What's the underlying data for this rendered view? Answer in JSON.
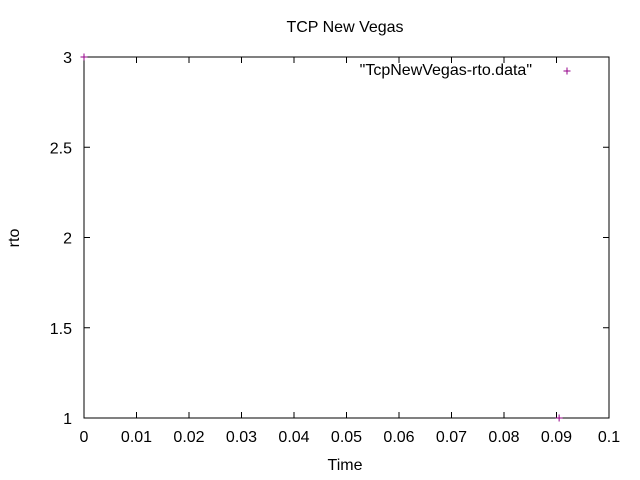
{
  "chart_data": {
    "type": "scatter",
    "title": "TCP New Vegas",
    "xlabel": "Time",
    "ylabel": "rto",
    "xlim": [
      0,
      0.1
    ],
    "ylim": [
      1,
      3
    ],
    "x_ticks": [
      0,
      0.01,
      0.02,
      0.03,
      0.04,
      0.05,
      0.06,
      0.07,
      0.08,
      0.09,
      0.1
    ],
    "x_tick_labels": [
      "0",
      "0.01",
      "0.02",
      "0.03",
      "0.04",
      "0.05",
      "0.06",
      "0.07",
      "0.08",
      "0.09",
      "0.1"
    ],
    "y_ticks": [
      1,
      1.5,
      2,
      2.5,
      3
    ],
    "y_tick_labels": [
      "1",
      "1.5",
      "2",
      "2.5",
      "3"
    ],
    "grid": false,
    "legend_position": "top-right",
    "series": [
      {
        "name": "\"TcpNewVegas-rto.data\"",
        "color": "#94008a",
        "marker": "plus",
        "points": [
          {
            "x": 0,
            "y": 3
          },
          {
            "x": 0.0905,
            "y": 1
          }
        ]
      }
    ]
  }
}
